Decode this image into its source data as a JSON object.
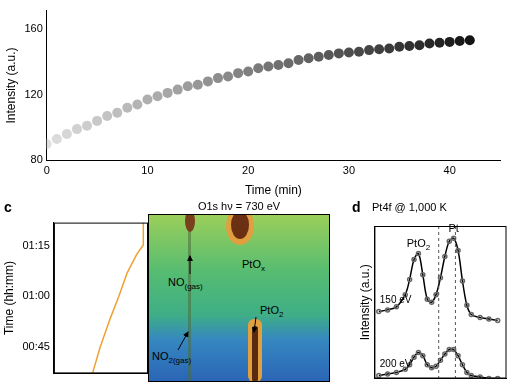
{
  "chart_data": [
    {
      "type": "scatter",
      "xlabel": "Time (min)",
      "ylabel": "Intensity (a.u.)",
      "x": [
        0,
        1,
        2,
        3,
        4,
        5,
        6,
        7,
        8,
        9,
        10,
        11,
        12,
        13,
        14,
        15,
        16,
        17,
        18,
        19,
        20,
        21,
        22,
        23,
        24,
        25,
        26,
        27,
        28,
        29,
        30,
        31,
        32,
        33,
        34,
        35,
        36,
        37,
        38,
        39,
        40,
        41,
        42
      ],
      "values": [
        90,
        93,
        96,
        99,
        101,
        104,
        107,
        109,
        112,
        114,
        117,
        119,
        121,
        123,
        125,
        126,
        128,
        130,
        131,
        133,
        134,
        136,
        137,
        138,
        139,
        141,
        142,
        143,
        144,
        145,
        145.5,
        146,
        147,
        147.5,
        148,
        149,
        149.5,
        150,
        151,
        151.5,
        152,
        152.5,
        153
      ],
      "colors": [
        "#e0e0e0",
        "#dbdbdb",
        "#d6d6d6",
        "#d1d1d1",
        "#cdcdcd",
        "#c8c8c8",
        "#c3c3c3",
        "#bebebe",
        "#b9b9b9",
        "#b4b4b4",
        "#afafaf",
        "#ababab",
        "#a6a6a6",
        "#a1a1a1",
        "#9c9c9c",
        "#979797",
        "#929292",
        "#8d8d8d",
        "#898989",
        "#848484",
        "#7f7f7f",
        "#7a7a7a",
        "#757575",
        "#707070",
        "#6b6b6b",
        "#676767",
        "#626262",
        "#5d5d5d",
        "#585858",
        "#535353",
        "#4e4e4e",
        "#494949",
        "#454545",
        "#404040",
        "#3b3b3b",
        "#363636",
        "#313131",
        "#2c2c2c",
        "#272727",
        "#232323",
        "#1e1e1e",
        "#191919",
        "#141414"
      ],
      "marker": "circle",
      "xlim": [
        0,
        45
      ],
      "xticks": [
        0,
        10,
        20,
        30,
        40
      ],
      "ylim": [
        80,
        171
      ],
      "yticks": [
        80,
        120,
        160
      ],
      "grid": false
    },
    {
      "type": "line",
      "panel_label": "c",
      "title": "O1s hν = 730 eV",
      "ylabel": "Time (hh:mm)",
      "x": [
        0.41,
        0.49,
        0.6,
        0.69,
        0.78,
        0.88,
        0.95,
        0.95
      ],
      "values": [
        37,
        44.7,
        53.5,
        60,
        67.1,
        72.5,
        75.3,
        82
      ],
      "color": "#f0a030",
      "xlim": [
        0,
        1
      ],
      "ylim": [
        37,
        82
      ],
      "yticks": [
        {
          "value": 45,
          "label": "00:45"
        },
        {
          "value": 60,
          "label": "01:00"
        },
        {
          "value": 75,
          "label": "01:15"
        }
      ],
      "tick_labels": "y",
      "grid": false,
      "image_labels": [
        {
          "main": "NO",
          "sub": "(gas)"
        },
        {
          "main": "PtO",
          "sub": "x"
        },
        {
          "main": "PtO",
          "sub": "2"
        },
        {
          "main": "NO",
          "sub": "2(gas)"
        }
      ]
    },
    {
      "type": "line",
      "panel_label": "d",
      "title": "Pt4f @ 1,000 K",
      "ylabel": "Intensity (a.u.)",
      "x": [
        1,
        3,
        5,
        7,
        8,
        9,
        10,
        11,
        12,
        13,
        14,
        15,
        16,
        17,
        18,
        19,
        20,
        21,
        22,
        24,
        26,
        28
      ],
      "series": [
        {
          "name": "150 eV",
          "color": "#000000",
          "marker": "circle",
          "values": [
            44,
            45,
            47,
            55,
            65,
            78,
            82,
            68,
            52,
            50,
            55,
            66,
            80,
            90,
            92,
            84,
            64,
            48,
            42,
            40,
            39,
            38
          ]
        },
        {
          "name": "200 eV",
          "color": "#000000",
          "marker": "circle",
          "values": [
            2,
            3,
            4,
            6,
            9,
            14,
            17,
            15,
            9,
            7,
            8,
            12,
            16,
            19,
            19,
            15,
            9,
            4,
            2,
            1,
            0,
            0
          ]
        }
      ],
      "reference_lines": [
        14.6,
        18.4
      ],
      "annotations": [
        {
          "main": "PtO",
          "sub": "2"
        },
        {
          "main": "Pt"
        }
      ],
      "xlim": [
        0,
        30
      ],
      "ylim": [
        0,
        100
      ],
      "tick_labels": false,
      "grid": false
    }
  ]
}
